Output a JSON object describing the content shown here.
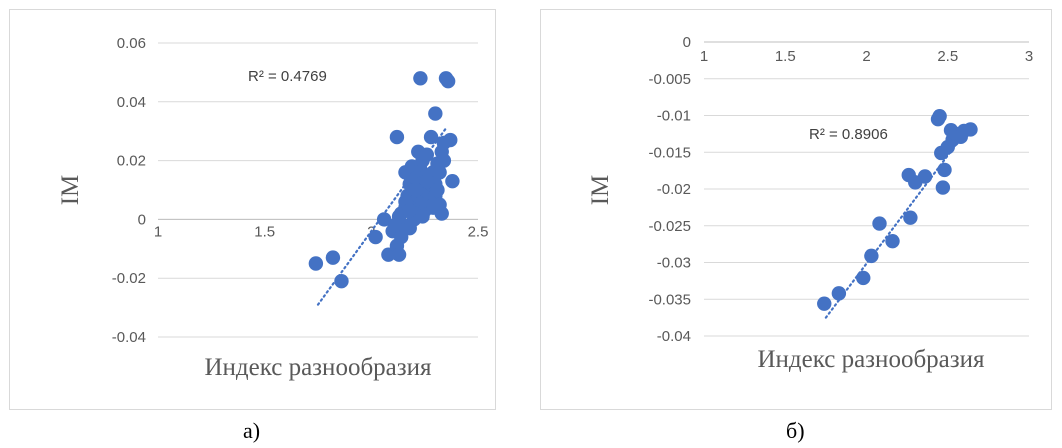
{
  "captions": {
    "a": "а)",
    "b": "б)"
  },
  "chart_data": [
    {
      "type": "scatter",
      "title": "",
      "xlabel": "Индекс разнообразия",
      "ylabel": "IM",
      "xlim": [
        1,
        2.5
      ],
      "ylim": [
        -0.04,
        0.06
      ],
      "x_ticks": [
        "1",
        "1.5",
        "2",
        "2.5"
      ],
      "y_ticks": [
        "-0.04",
        "-0.02",
        "0",
        "0.02",
        "0.04",
        "0.06"
      ],
      "grid": "horizontal",
      "marker_color": "#4472c4",
      "trendline": {
        "type": "linear",
        "style": "dotted",
        "x_range": [
          1.75,
          2.35
        ],
        "y_start": -0.029,
        "y_end": 0.031
      },
      "r2_label": "R² = 0.4769",
      "series": [
        {
          "x": [
            1.74,
            1.82,
            1.86,
            2.02,
            2.06,
            2.08,
            2.1,
            2.12,
            2.13,
            2.12,
            2.14,
            2.14,
            2.15,
            2.16,
            2.16,
            2.17,
            2.18,
            2.18,
            2.19,
            2.19,
            2.2,
            2.2,
            2.21,
            2.21,
            2.22,
            2.22,
            2.22,
            2.23,
            2.23,
            2.24,
            2.24,
            2.25,
            2.25,
            2.26,
            2.26,
            2.27,
            2.27,
            2.28,
            2.28,
            2.29,
            2.29,
            2.3,
            2.3,
            2.3,
            2.31,
            2.31,
            2.32,
            2.32,
            2.33,
            2.33,
            2.34,
            2.34,
            2.35,
            2.36,
            2.37,
            2.38,
            2.13,
            2.23,
            2.11,
            2.16,
            2.21,
            2.26,
            2.29,
            2.18,
            2.24
          ],
          "y": [
            -0.015,
            -0.013,
            -0.021,
            -0.006,
            0.0,
            -0.012,
            -0.004,
            -0.009,
            -0.012,
            0.028,
            -0.006,
            0.002,
            -0.002,
            0.004,
            0.016,
            0.008,
            -0.003,
            0.012,
            0.018,
            0.006,
            0.01,
            0.0,
            0.004,
            0.014,
            0.008,
            0.023,
            0.002,
            0.012,
            0.017,
            0.006,
            0.02,
            0.003,
            0.01,
            0.015,
            0.022,
            0.006,
            0.009,
            0.012,
            0.028,
            0.004,
            0.016,
            0.008,
            0.036,
            0.012,
            0.019,
            0.01,
            0.005,
            0.016,
            0.002,
            0.023,
            0.026,
            0.02,
            0.048,
            0.047,
            0.027,
            0.013,
            0.001,
            0.048,
            -0.002,
            0.006,
            0.01,
            0.013,
            0.005,
            0.003,
            0.001
          ]
        }
      ]
    },
    {
      "type": "scatter",
      "title": "",
      "xlabel": "Индекс разнообразия",
      "ylabel": "IM",
      "xlim": [
        1,
        3
      ],
      "ylim": [
        -0.04,
        0
      ],
      "x_ticks": [
        "1",
        "1.5",
        "2",
        "2.5",
        "3"
      ],
      "y_ticks": [
        "-0.04",
        "-0.035",
        "-0.03",
        "-0.025",
        "-0.02",
        "-0.015",
        "-0.01",
        "-0.005",
        "0"
      ],
      "grid": "horizontal",
      "marker_color": "#4472c4",
      "trendline": {
        "type": "linear",
        "style": "dotted",
        "x_range": [
          1.75,
          2.6
        ],
        "y_start": -0.0375,
        "y_end": -0.0125
      },
      "r2_label": "R² = 0.8906",
      "series": [
        {
          "x": [
            1.74,
            1.83,
            1.98,
            2.03,
            2.08,
            2.16,
            2.26,
            2.27,
            2.3,
            2.36,
            2.44,
            2.45,
            2.46,
            2.47,
            2.48,
            2.5,
            2.52,
            2.53,
            2.55,
            2.58,
            2.6,
            2.64
          ],
          "y": [
            -0.0356,
            -0.0342,
            -0.0321,
            -0.0291,
            -0.0247,
            -0.0271,
            -0.0181,
            -0.0239,
            -0.0191,
            -0.0183,
            -0.0105,
            -0.0101,
            -0.0151,
            -0.0198,
            -0.0174,
            -0.0143,
            -0.012,
            -0.0133,
            -0.0125,
            -0.0129,
            -0.0121,
            -0.0119
          ]
        }
      ]
    }
  ]
}
